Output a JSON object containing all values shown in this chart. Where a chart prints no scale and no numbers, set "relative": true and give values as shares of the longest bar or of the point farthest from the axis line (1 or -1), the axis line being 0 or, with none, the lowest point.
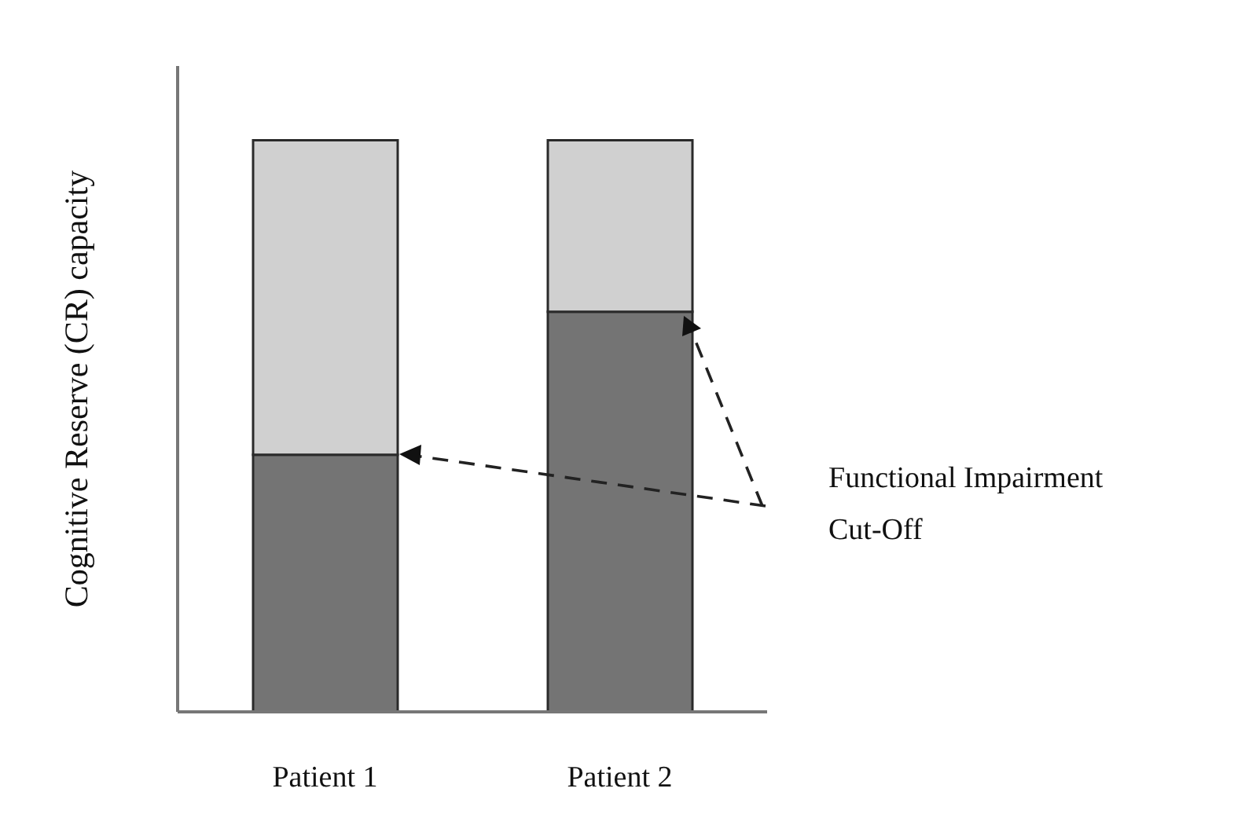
{
  "chart_data": {
    "type": "bar",
    "ylabel": "Cognitive Reserve (CR) capacity",
    "categories": [
      "Patient 1",
      "Patient 2"
    ],
    "stacked": true,
    "relative": true,
    "series": [
      {
        "color": "#747474",
        "values": [
          0.45,
          0.7
        ]
      },
      {
        "color": "#d0d0d0",
        "values": [
          0.55,
          0.3
        ]
      }
    ],
    "annotations": [
      "Functional Impairment Cut-Off"
    ],
    "grid": false,
    "legend": false
  }
}
